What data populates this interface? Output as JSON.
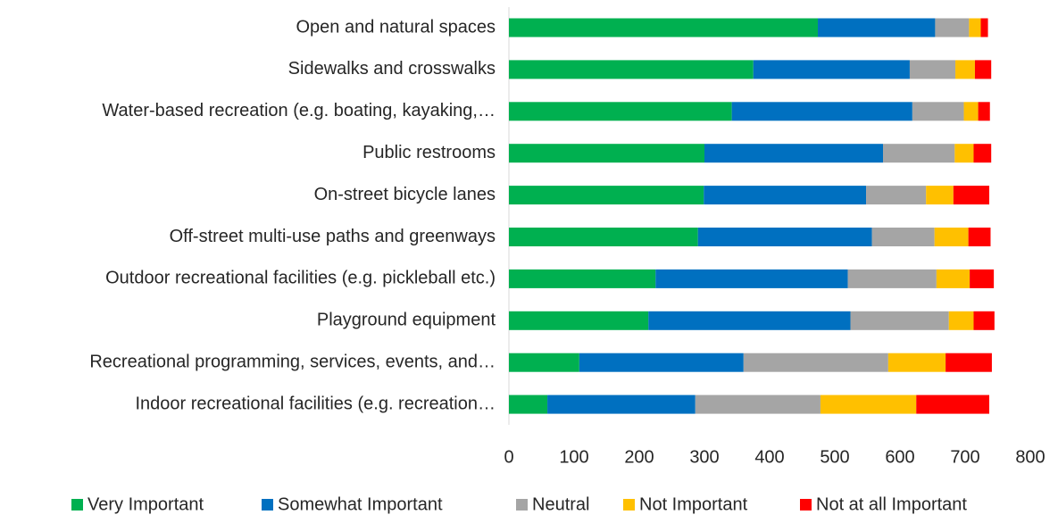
{
  "chart_data": {
    "type": "stacked_barh",
    "categories": [
      "Open and natural spaces",
      "Sidewalks and crosswalks",
      "Water-based recreation (e.g. boating, kayaking,…",
      "Public restrooms",
      "On-street bicycle lanes",
      "Off-street multi-use paths and greenways",
      "Outdoor recreational facilities (e.g. pickleball etc.)",
      "Playground equipment",
      "Recreational programming, services, events, and…",
      "Indoor recreational facilities (e.g. recreation…"
    ],
    "series": [
      {
        "name": "Very Important",
        "color": "#00b050",
        "values": [
          474,
          375,
          342,
          300,
          299,
          290,
          225,
          214,
          108,
          59
        ]
      },
      {
        "name": "Somewhat Important",
        "color": "#0070c0",
        "values": [
          180,
          240,
          277,
          274,
          249,
          267,
          295,
          310,
          252,
          227
        ]
      },
      {
        "name": "Neutral",
        "color": "#a5a5a5",
        "values": [
          52,
          70,
          79,
          110,
          92,
          96,
          136,
          151,
          222,
          192
        ]
      },
      {
        "name": "Not Important",
        "color": "#ffc000",
        "values": [
          18,
          30,
          22,
          29,
          42,
          52,
          51,
          38,
          88,
          147
        ]
      },
      {
        "name": "Not at all Important",
        "color": "#ff0000",
        "values": [
          11,
          25,
          18,
          27,
          55,
          34,
          37,
          32,
          71,
          112
        ]
      }
    ],
    "xlim": [
      0,
      800
    ],
    "xticks": [
      0,
      100,
      200,
      300,
      400,
      500,
      600,
      700,
      800
    ],
    "legend": "bottom"
  }
}
